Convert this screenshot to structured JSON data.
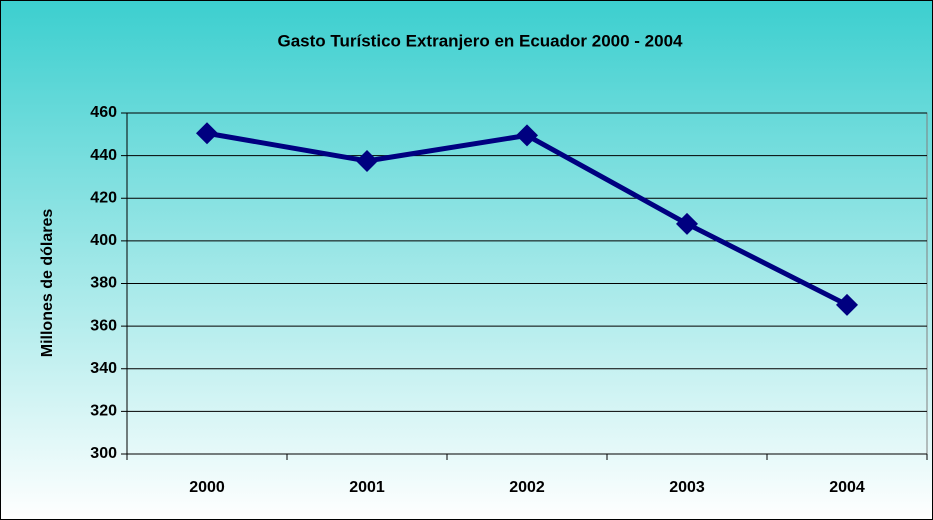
{
  "chart_data": {
    "type": "line",
    "title": "Gasto Turístico Extranjero en Ecuador 2000 - 2004",
    "y_label": "Millones de dólares",
    "categories": [
      "2000",
      "2001",
      "2002",
      "2003",
      "2004"
    ],
    "values": [
      450.5,
      437.5,
      449.5,
      408,
      370
    ],
    "color": "#000080",
    "ylim": [
      300,
      460
    ],
    "yticks": [
      300,
      320,
      340,
      360,
      380,
      400,
      420,
      440,
      460
    ],
    "grid": true
  }
}
